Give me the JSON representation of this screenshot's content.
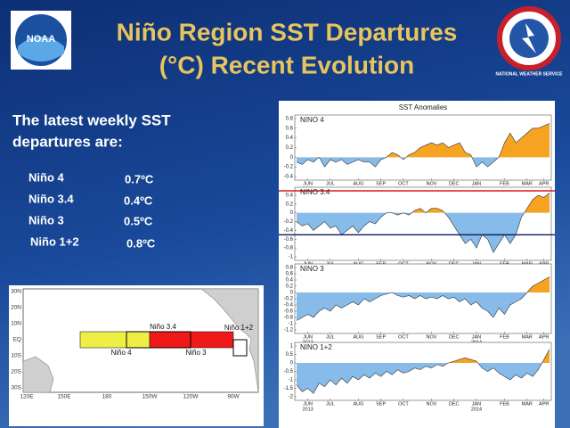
{
  "title_lines": [
    "Niño Region SST Departures",
    "(°C) Recent Evolution"
  ],
  "subtitle_lines": [
    "The latest weekly SST",
    "departures are:"
  ],
  "departures": {
    "rows": [
      [
        "Niño 4",
        "0.7ºC"
      ],
      [
        "Niño 3.4",
        "0.4ºC"
      ],
      [
        "Niño 3",
        "0.5ºC"
      ],
      [
        "Niño 1+2",
        "0.8ºC"
      ]
    ]
  },
  "logos": {
    "left": "NOAA",
    "right": "NATIONAL WEATHER SERVICE"
  },
  "charts_heading": "SST Anomalies",
  "years": [
    "2013",
    "2014"
  ],
  "chart_data": [
    {
      "type": "area",
      "title": "NINO 4",
      "categories": [
        null,
        null,
        "JUN",
        null,
        null,
        null,
        "JUL",
        null,
        null,
        null,
        null,
        "AUG",
        null,
        null,
        null,
        "SEP",
        null,
        null,
        null,
        "OCT",
        null,
        null,
        null,
        null,
        "NOV",
        null,
        null,
        null,
        "DEC",
        null,
        null,
        null,
        "JAN",
        null,
        null,
        null,
        null,
        "FEB",
        null,
        null,
        null,
        "MAR",
        null,
        null,
        "APR",
        null
      ],
      "values": [
        -0.1,
        -0.15,
        -0.05,
        -0.1,
        0.0,
        -0.2,
        -0.05,
        -0.1,
        -0.05,
        -0.15,
        -0.1,
        -0.05,
        -0.1,
        -0.1,
        -0.2,
        -0.05,
        0.0,
        0.1,
        0.05,
        -0.05,
        0.05,
        0.1,
        0.2,
        0.25,
        0.3,
        0.25,
        0.3,
        0.2,
        0.25,
        0.3,
        0.1,
        0.05,
        -0.2,
        -0.1,
        -0.2,
        -0.1,
        0.0,
        0.3,
        0.5,
        0.3,
        0.4,
        0.5,
        0.6,
        0.6,
        0.65,
        0.7
      ],
      "ylim": [
        -0.4,
        0.8
      ],
      "yticks": [
        -0.4,
        -0.2,
        0,
        0.2,
        0.4,
        0.6,
        0.8
      ],
      "positive_color": "#f5a321",
      "negative_color": "#86bbea"
    },
    {
      "type": "area",
      "title": "NINO 3.4",
      "categories": [
        null,
        null,
        "JUN",
        null,
        null,
        null,
        "JUL",
        null,
        null,
        null,
        null,
        "AUG",
        null,
        null,
        null,
        "SEP",
        null,
        null,
        null,
        "OCT",
        null,
        null,
        null,
        null,
        "NOV",
        null,
        null,
        null,
        "DEC",
        null,
        null,
        null,
        "JAN",
        null,
        null,
        null,
        null,
        "FEB",
        null,
        null,
        null,
        "MAR",
        null,
        null,
        "APR",
        null
      ],
      "values": [
        -0.2,
        -0.3,
        -0.25,
        -0.4,
        -0.3,
        -0.2,
        -0.35,
        -0.3,
        -0.5,
        -0.4,
        -0.3,
        -0.45,
        -0.3,
        -0.2,
        -0.25,
        -0.1,
        0.0,
        0.0,
        -0.05,
        0.0,
        -0.05,
        0.05,
        0.1,
        0.0,
        0.1,
        0.1,
        0.05,
        -0.1,
        -0.3,
        -0.5,
        -0.7,
        -0.6,
        -0.8,
        -0.5,
        -0.6,
        -0.9,
        -0.7,
        -0.5,
        -0.7,
        -0.5,
        -0.1,
        0.1,
        0.3,
        0.4,
        0.35,
        0.45
      ],
      "ylim": [
        -1,
        0.5
      ],
      "yticks": [
        -1,
        -0.8,
        -0.6,
        -0.4,
        -0.2,
        0,
        0.2,
        0.4
      ],
      "positive_color": "#f5a321",
      "negative_color": "#86bbea",
      "reference_lines": [
        {
          "value": 0.5,
          "color": "#d81818"
        },
        {
          "value": -0.5,
          "color": "#0a1a5c"
        }
      ]
    },
    {
      "type": "area",
      "title": "NINO 3",
      "categories": [
        null,
        null,
        "JUN",
        null,
        null,
        null,
        "JUL",
        null,
        null,
        null,
        null,
        "AUG",
        null,
        null,
        null,
        "SEP",
        null,
        null,
        null,
        "OCT",
        null,
        null,
        null,
        null,
        "NOV",
        null,
        null,
        null,
        "DEC",
        null,
        null,
        null,
        "JAN",
        null,
        null,
        null,
        null,
        "FEB",
        null,
        null,
        null,
        "MAR",
        null,
        null,
        "APR",
        null
      ],
      "values": [
        -0.9,
        -0.8,
        -0.7,
        -0.8,
        -0.6,
        -0.5,
        -0.6,
        -0.4,
        -0.5,
        -0.4,
        -0.3,
        -0.4,
        -0.2,
        -0.3,
        -0.2,
        -0.1,
        -0.05,
        0.0,
        -0.1,
        -0.15,
        -0.1,
        -0.2,
        -0.1,
        -0.2,
        -0.15,
        -0.2,
        -0.1,
        -0.2,
        -0.15,
        -0.3,
        -0.2,
        -0.4,
        -0.3,
        -0.5,
        -0.6,
        -0.8,
        -0.5,
        -0.7,
        -0.4,
        -0.3,
        -0.2,
        0.0,
        0.2,
        0.3,
        0.4,
        0.5
      ],
      "ylim": [
        -1.2,
        0.8
      ],
      "yticks": [
        -1.2,
        -1,
        -0.8,
        -0.6,
        -0.4,
        -0.2,
        0,
        0.2,
        0.4,
        0.6,
        0.8
      ],
      "positive_color": "#f5a321",
      "negative_color": "#86bbea"
    },
    {
      "type": "area",
      "title": "NINO 1+2",
      "categories": [
        null,
        null,
        "JUN",
        null,
        null,
        null,
        "JUL",
        null,
        null,
        null,
        null,
        "AUG",
        null,
        null,
        null,
        "SEP",
        null,
        null,
        null,
        "OCT",
        null,
        null,
        null,
        null,
        "NOV",
        null,
        null,
        null,
        "DEC",
        null,
        null,
        null,
        "JAN",
        null,
        null,
        null,
        null,
        "FEB",
        null,
        null,
        null,
        "MAR",
        null,
        null,
        "APR",
        null
      ],
      "values": [
        -1.3,
        -1.7,
        -1.5,
        -1.8,
        -1.2,
        -1.4,
        -1.0,
        -1.3,
        -0.9,
        -1.2,
        -0.8,
        -1.0,
        -0.7,
        -0.9,
        -0.6,
        -0.8,
        -0.5,
        -0.7,
        -0.4,
        -0.6,
        -0.5,
        -0.3,
        -0.4,
        -0.2,
        -0.3,
        -0.1,
        -0.2,
        0.0,
        0.1,
        0.2,
        0.3,
        0.2,
        0.1,
        -0.3,
        -0.5,
        -0.3,
        -0.6,
        -0.8,
        -1.0,
        -0.7,
        -0.9,
        -0.6,
        -0.8,
        -0.4,
        0.2,
        0.8
      ],
      "ylim": [
        -2,
        1
      ],
      "yticks": [
        -2,
        -1.5,
        -1,
        -0.5,
        0,
        0.5,
        1
      ],
      "positive_color": "#f5a321",
      "negative_color": "#86bbea"
    }
  ],
  "map": {
    "lat_labels": [
      "30N",
      "20N",
      "10N",
      "EQ",
      "10S",
      "20S",
      "30S"
    ],
    "lon_labels": [
      "120E",
      "150E",
      "180",
      "150W",
      "120W",
      "90W"
    ],
    "regions": [
      "Niño 3.4",
      "Niño 4",
      "Niño 3",
      "Niño 1+2"
    ]
  }
}
